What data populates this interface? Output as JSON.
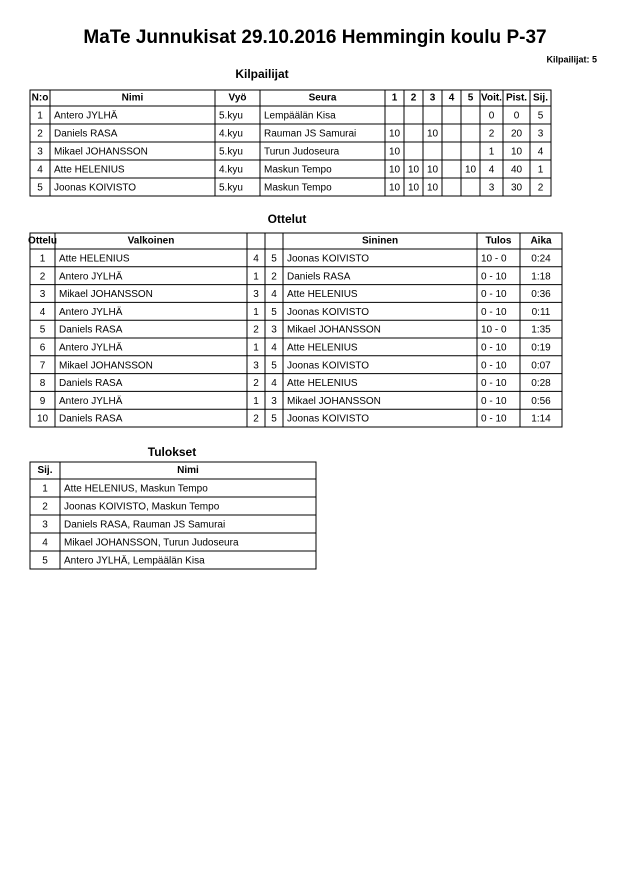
{
  "header": {
    "title": "MaTe Junnukisat  29.10.2016  Hemmingin koulu   P-37",
    "count": "Kilpailijat: 5"
  },
  "competitors": {
    "title": "Kilpailijat",
    "columns": [
      "N:o",
      "Nimi",
      "Vyö",
      "Seura",
      "1",
      "2",
      "3",
      "4",
      "5",
      "Voit.",
      "Pist.",
      "Sij."
    ],
    "rows": [
      [
        1,
        "Antero JYLHÄ",
        "5.kyu",
        "Lempäälän Kisa",
        null,
        null,
        null,
        null,
        null,
        0,
        0,
        5
      ],
      [
        2,
        "Daniels RASA",
        "4.kyu",
        "Rauman JS Samurai",
        10,
        null,
        10,
        null,
        null,
        2,
        20,
        3
      ],
      [
        3,
        "Mikael JOHANSSON",
        "5.kyu",
        "Turun Judoseura",
        10,
        null,
        null,
        null,
        null,
        1,
        10,
        4
      ],
      [
        4,
        "Atte HELENIUS",
        "4.kyu",
        "Maskun Tempo",
        10,
        10,
        10,
        null,
        10,
        4,
        40,
        1
      ],
      [
        5,
        "Joonas KOIVISTO",
        "5.kyu",
        "Maskun Tempo",
        10,
        10,
        10,
        null,
        null,
        3,
        30,
        2
      ]
    ]
  },
  "matches": {
    "title": "Ottelut",
    "columns": [
      "Ottelu",
      "Valkoinen",
      null,
      null,
      "Sininen",
      "Tulos",
      "Aika"
    ],
    "rows": [
      [
        1,
        "Atte HELENIUS",
        4,
        5,
        "Joonas KOIVISTO",
        "10 - 0",
        "0:24"
      ],
      [
        2,
        "Antero JYLHÄ",
        1,
        2,
        "Daniels RASA",
        "0 - 10",
        "1:18"
      ],
      [
        3,
        "Mikael JOHANSSON",
        3,
        4,
        "Atte HELENIUS",
        "0 - 10",
        "0:36"
      ],
      [
        4,
        "Antero JYLHÄ",
        1,
        5,
        "Joonas KOIVISTO",
        "0 - 10",
        "0:11"
      ],
      [
        5,
        "Daniels RASA",
        2,
        3,
        "Mikael JOHANSSON",
        "10 - 0",
        "1:35"
      ],
      [
        6,
        "Antero JYLHÄ",
        1,
        4,
        "Atte HELENIUS",
        "0 - 10",
        "0:19"
      ],
      [
        7,
        "Mikael JOHANSSON",
        3,
        5,
        "Joonas KOIVISTO",
        "0 - 10",
        "0:07"
      ],
      [
        8,
        "Daniels RASA",
        2,
        4,
        "Atte HELENIUS",
        "0 - 10",
        "0:28"
      ],
      [
        9,
        "Antero JYLHÄ",
        1,
        3,
        "Mikael JOHANSSON",
        "0 - 10",
        "0:56"
      ],
      [
        10,
        "Daniels RASA",
        2,
        5,
        "Joonas KOIVISTO",
        "0 - 10",
        "1:14"
      ]
    ]
  },
  "results": {
    "title": "Tulokset",
    "columns": [
      "Sij.",
      "Nimi"
    ],
    "rows": [
      [
        1,
        "Atte HELENIUS, Maskun Tempo"
      ],
      [
        2,
        "Joonas KOIVISTO, Maskun Tempo"
      ],
      [
        3,
        "Daniels RASA, Rauman JS Samurai"
      ],
      [
        4,
        "Mikael JOHANSSON, Turun Judoseura"
      ],
      [
        5,
        "Antero JYLHÄ, Lempäälän Kisa"
      ]
    ]
  }
}
